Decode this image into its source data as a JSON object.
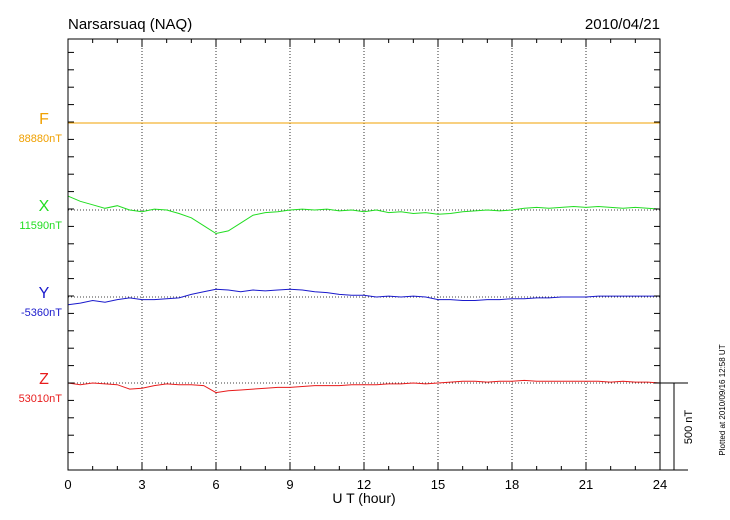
{
  "header": {
    "station": "Narsarsuaq (NAQ)",
    "date": "2010/04/21"
  },
  "side_note": "Plotted at 2010/09/16 12:58 UT",
  "chart_data": {
    "type": "line",
    "xlabel": "U T (hour)",
    "xlim": [
      0,
      24
    ],
    "x_ticks": [
      0,
      3,
      6,
      9,
      12,
      15,
      18,
      21,
      24
    ],
    "grid": true,
    "scale_bar": {
      "label": "500 nT",
      "value_nT": 500
    },
    "x": [
      0,
      0.5,
      1,
      1.5,
      2,
      2.5,
      3,
      3.5,
      4,
      4.5,
      5,
      5.5,
      6,
      6.5,
      7,
      7.5,
      8,
      8.5,
      9,
      9.5,
      10,
      10.5,
      11,
      11.5,
      12,
      12.5,
      13,
      13.5,
      14,
      14.5,
      15,
      15.5,
      16,
      16.5,
      17,
      17.5,
      18,
      18.5,
      19,
      19.5,
      20,
      20.5,
      21,
      21.5,
      22,
      22.5,
      23,
      23.5,
      24
    ],
    "series": [
      {
        "name": "F",
        "baseline_label": "88880nT",
        "baseline": 88880,
        "color": "#f0a000",
        "values": [
          88880,
          88880,
          88880,
          88880,
          88880,
          88880,
          88880,
          88880,
          88880,
          88880,
          88880,
          88880,
          88880,
          88880,
          88880,
          88880,
          88880,
          88880,
          88880,
          88880,
          88880,
          88880,
          88880,
          88880,
          88880,
          88880,
          88880,
          88880,
          88880,
          88880,
          88880,
          88880,
          88880,
          88880,
          88880,
          88880,
          88880,
          88880,
          88880,
          88880,
          88880,
          88880,
          88880,
          88880,
          88880,
          88880,
          88880,
          88880,
          88880
        ]
      },
      {
        "name": "X",
        "baseline_label": "11590nT",
        "baseline": 11590,
        "color": "#22dd22",
        "values": [
          11670,
          11640,
          11620,
          11600,
          11615,
          11590,
          11580,
          11595,
          11590,
          11570,
          11545,
          11500,
          11455,
          11470,
          11515,
          11560,
          11575,
          11580,
          11590,
          11595,
          11590,
          11595,
          11585,
          11590,
          11580,
          11590,
          11575,
          11580,
          11570,
          11575,
          11565,
          11570,
          11580,
          11585,
          11590,
          11585,
          11590,
          11600,
          11605,
          11600,
          11605,
          11610,
          11605,
          11610,
          11605,
          11600,
          11605,
          11600,
          11595
        ]
      },
      {
        "name": "Y",
        "baseline_label": "-5360nT",
        "baseline": -5360,
        "color": "#1a1acc",
        "values": [
          -5405,
          -5395,
          -5380,
          -5390,
          -5375,
          -5365,
          -5375,
          -5375,
          -5370,
          -5365,
          -5345,
          -5330,
          -5315,
          -5320,
          -5330,
          -5320,
          -5325,
          -5320,
          -5315,
          -5320,
          -5330,
          -5335,
          -5345,
          -5350,
          -5350,
          -5360,
          -5355,
          -5360,
          -5355,
          -5360,
          -5375,
          -5375,
          -5380,
          -5380,
          -5375,
          -5375,
          -5370,
          -5370,
          -5365,
          -5365,
          -5360,
          -5360,
          -5360,
          -5355,
          -5355,
          -5355,
          -5355,
          -5355,
          -5355
        ]
      },
      {
        "name": "Z",
        "baseline_label": "53010nT",
        "baseline": 53010,
        "color": "#e81c1c",
        "values": [
          53010,
          53000,
          53010,
          53005,
          53000,
          52975,
          52980,
          52995,
          53005,
          53000,
          53000,
          52995,
          52955,
          52965,
          52970,
          52975,
          52980,
          52985,
          52985,
          52990,
          52995,
          52995,
          52995,
          53000,
          53000,
          53000,
          53005,
          53005,
          53010,
          53005,
          53010,
          53015,
          53020,
          53020,
          53015,
          53020,
          53020,
          53025,
          53020,
          53020,
          53020,
          53020,
          53020,
          53020,
          53015,
          53020,
          53015,
          53015,
          53010
        ]
      }
    ]
  }
}
